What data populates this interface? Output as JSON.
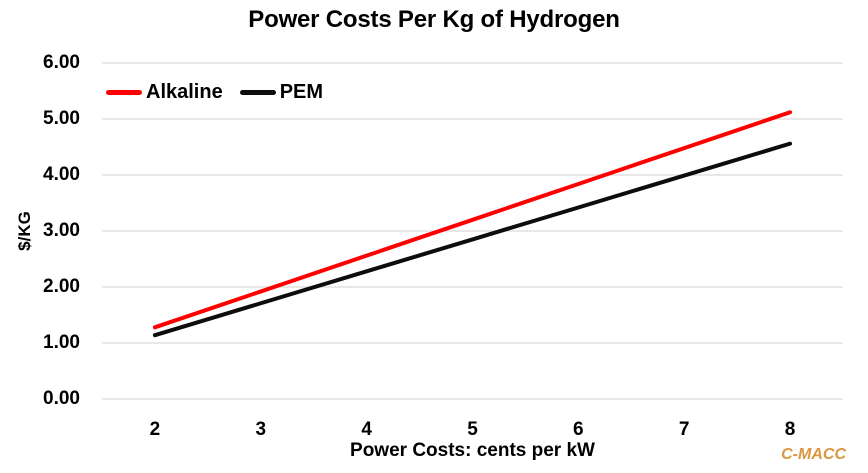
{
  "watermark": "C-MACC",
  "colors": {
    "alkaline_red": "#fe0000",
    "pem_black": "#0d0d0d",
    "gridline": "#d9d9d9",
    "watermark_orange": "#d9973f",
    "text": "#000000",
    "background": "#ffffff"
  },
  "chart_data": {
    "type": "line",
    "title": "Power Costs Per Kg of Hydrogen",
    "xlabel": "Power Costs: cents per kW",
    "ylabel": "$/KG",
    "x": [
      2,
      3,
      4,
      5,
      6,
      7,
      8
    ],
    "xticks": [
      "2",
      "3",
      "4",
      "5",
      "6",
      "7",
      "8"
    ],
    "yticks": [
      "6.00",
      "5.00",
      "4.00",
      "3.00",
      "2.00",
      "1.00",
      "0.00"
    ],
    "ylim": [
      0,
      6
    ],
    "grid": "horizontal-only",
    "legend_position": "inside-top-left",
    "line_width": 4,
    "series": [
      {
        "name": "Alkaline",
        "color": "#fe0000",
        "values": [
          1.28,
          1.92,
          2.56,
          3.2,
          3.84,
          4.48,
          5.12
        ]
      },
      {
        "name": "PEM",
        "color": "#0d0d0d",
        "values": [
          1.14,
          1.71,
          2.28,
          2.85,
          3.42,
          3.99,
          4.56
        ]
      }
    ]
  }
}
